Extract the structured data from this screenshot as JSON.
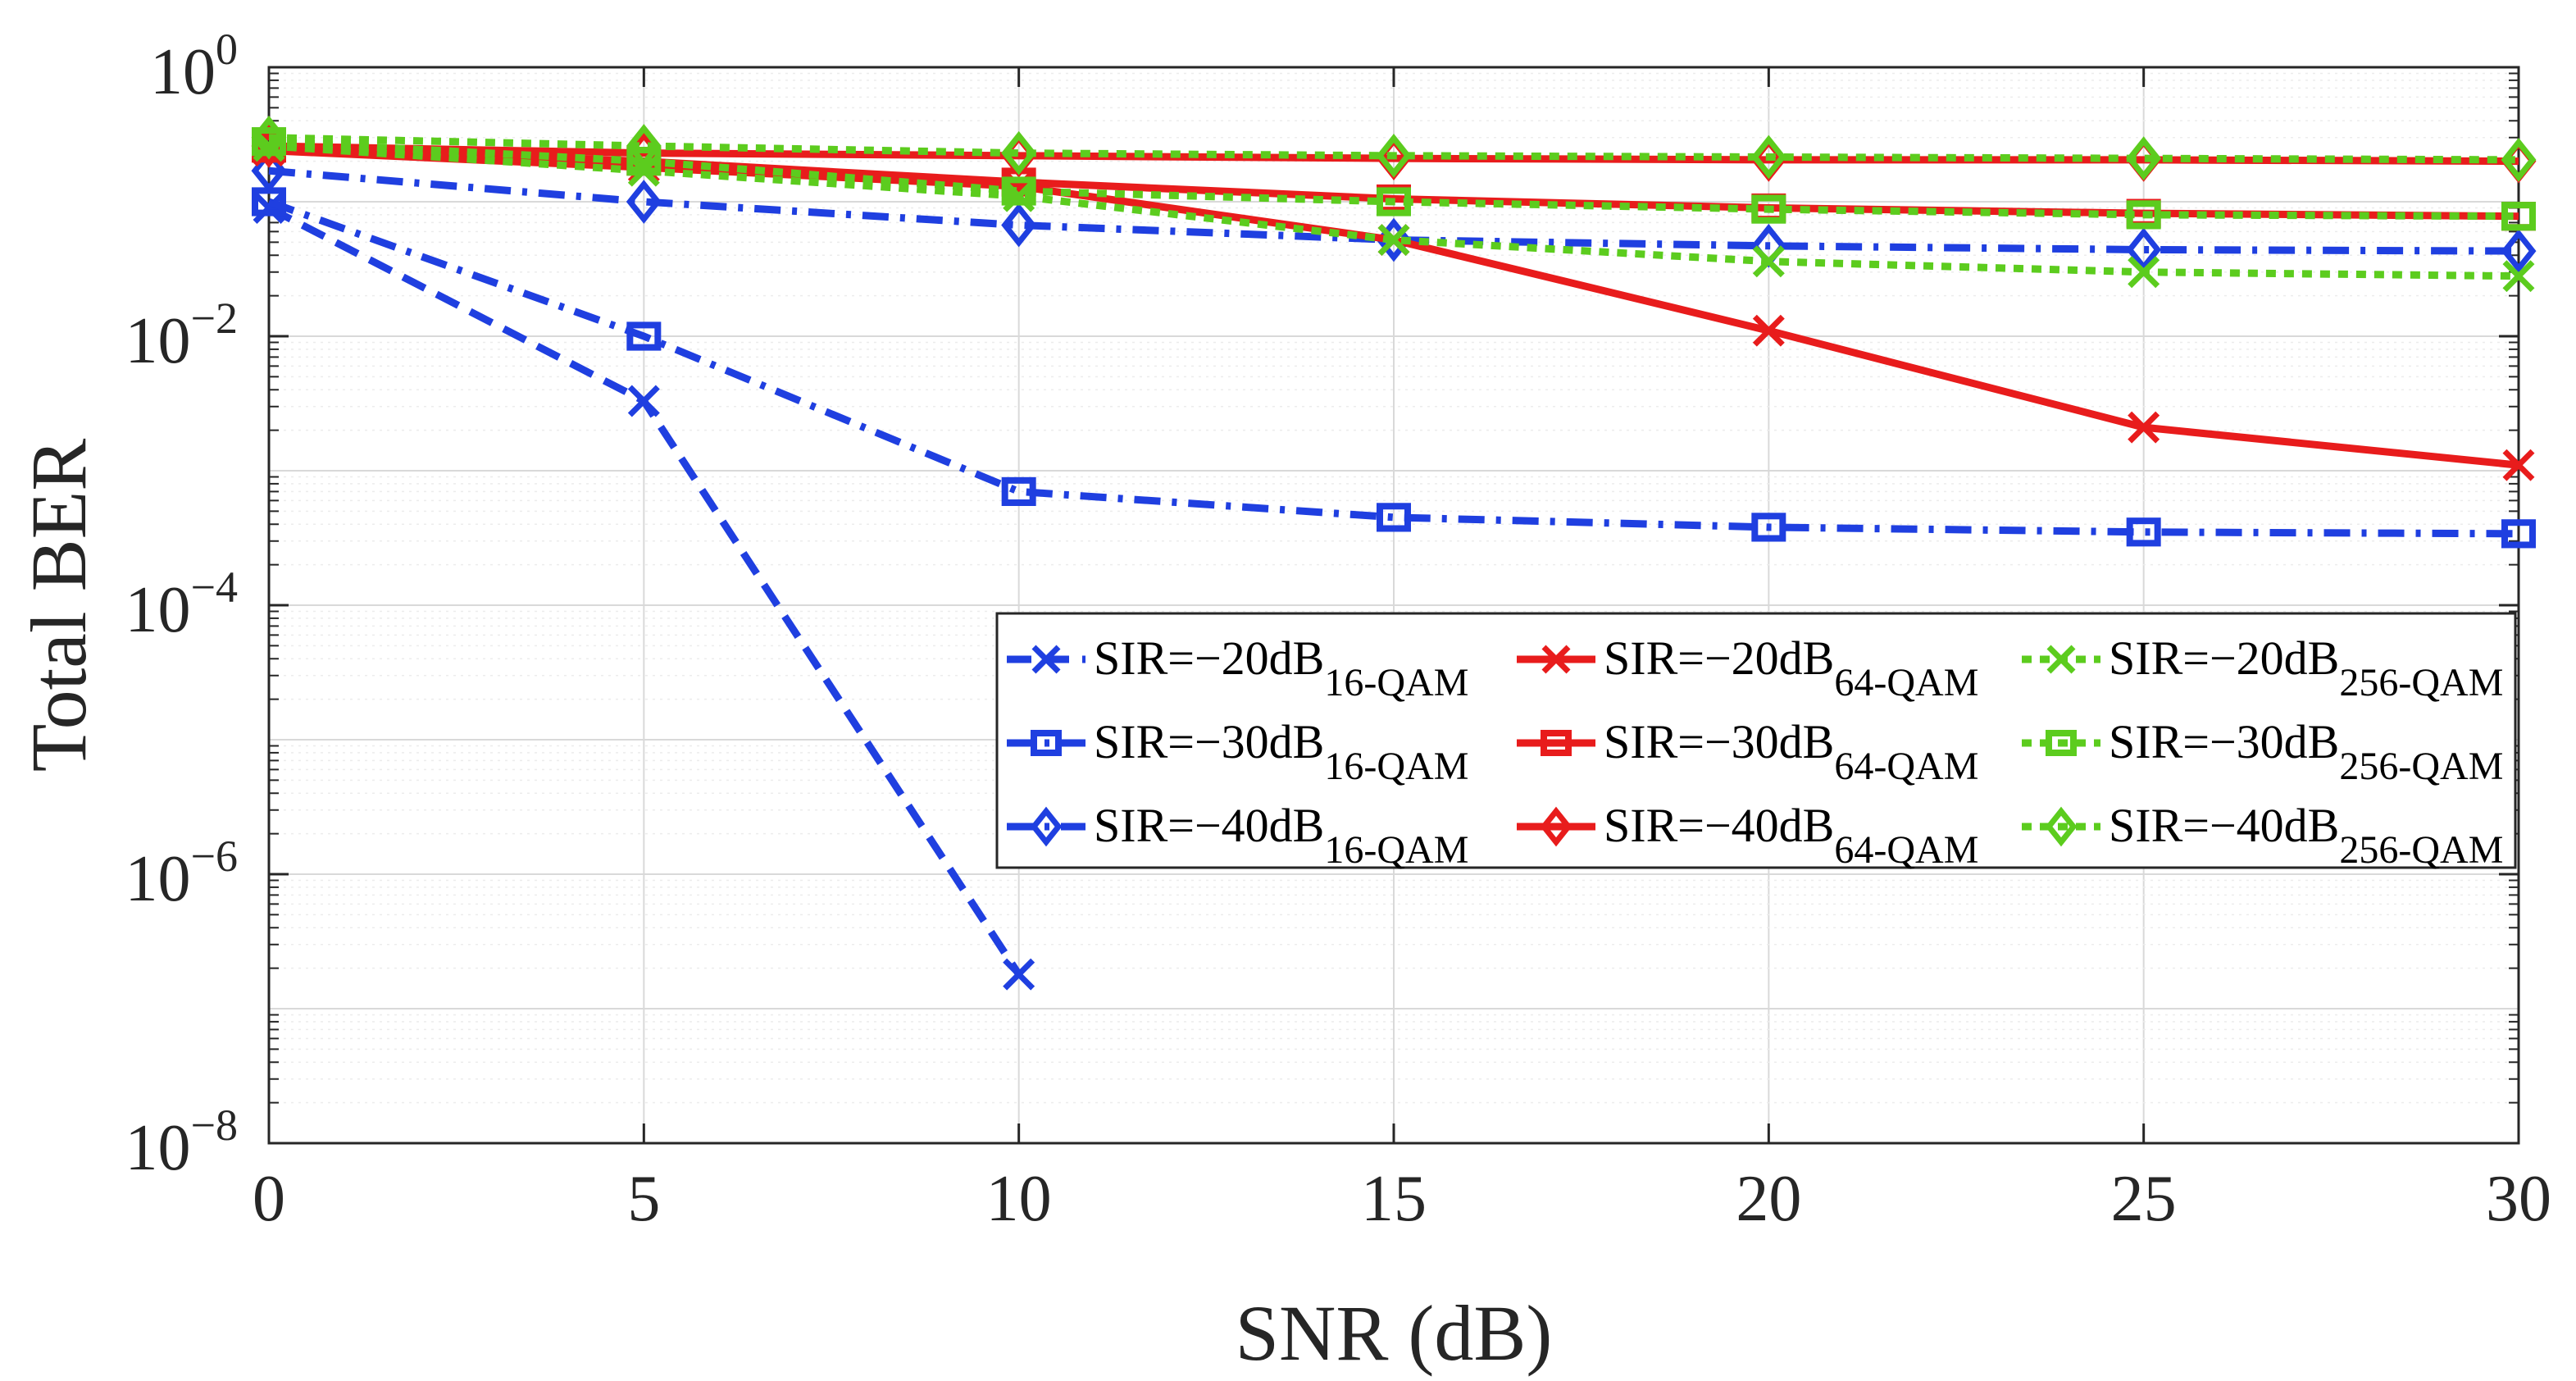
{
  "chart_data": {
    "type": "line",
    "title": "",
    "xlabel": "SNR (dB)",
    "ylabel": "Total BER",
    "yscale": "log",
    "xlim": [
      0,
      30
    ],
    "ylim": [
      1e-08,
      1
    ],
    "grid": true,
    "x_ticks": [
      0,
      5,
      10,
      15,
      20,
      25,
      30
    ],
    "x_tick_labels": [
      "0",
      "5",
      "10",
      "15",
      "20",
      "25",
      "30"
    ],
    "y_ticks": [
      {
        "value": 1,
        "base": "10",
        "exp": "0"
      },
      {
        "value": 0.01,
        "base": "10",
        "exp": "−2"
      },
      {
        "value": 0.0001,
        "base": "10",
        "exp": "−4"
      },
      {
        "value": 1e-06,
        "base": "10",
        "exp": "−6"
      },
      {
        "value": 1e-08,
        "base": "10",
        "exp": "−8"
      }
    ],
    "legend_position": "center-right",
    "x": [
      0,
      5,
      10,
      15,
      20,
      25,
      30
    ],
    "series": [
      {
        "name": "SIR=−20dB",
        "sub": "16-QAM",
        "color": "#1f3fe0",
        "dash": "dash",
        "marker": "x",
        "x": [
          0,
          5,
          10
        ],
        "values": [
          0.09,
          0.0033,
          1.8e-07
        ]
      },
      {
        "name": "SIR=−30dB",
        "sub": "16-QAM",
        "color": "#1f3fe0",
        "dash": "dashdot",
        "marker": "square",
        "x": [
          0,
          5,
          10,
          15,
          20,
          25,
          30
        ],
        "values": [
          0.1,
          0.01,
          0.0007,
          0.00045,
          0.00038,
          0.00035,
          0.00034
        ]
      },
      {
        "name": "SIR=−40dB",
        "sub": "16-QAM",
        "color": "#1f3fe0",
        "dash": "dashdot",
        "marker": "diamond",
        "x": [
          0,
          5,
          10,
          15,
          20,
          25,
          30
        ],
        "values": [
          0.17,
          0.1,
          0.067,
          0.052,
          0.047,
          0.044,
          0.043
        ]
      },
      {
        "name": "SIR=−20dB",
        "sub": "64-QAM",
        "color": "#e81c1c",
        "dash": "solid",
        "marker": "x",
        "x": [
          0,
          5,
          10,
          15,
          20,
          25,
          30
        ],
        "values": [
          0.24,
          0.18,
          0.13,
          0.052,
          0.011,
          0.0021,
          0.0011
        ]
      },
      {
        "name": "SIR=−30dB",
        "sub": "64-QAM",
        "color": "#e81c1c",
        "dash": "solid",
        "marker": "square",
        "x": [
          0,
          5,
          10,
          15,
          20,
          25,
          30
        ],
        "values": [
          0.25,
          0.2,
          0.14,
          0.105,
          0.09,
          0.082,
          0.078
        ]
      },
      {
        "name": "SIR=−40dB",
        "sub": "64-QAM",
        "color": "#e81c1c",
        "dash": "solid",
        "marker": "diamond",
        "x": [
          0,
          5,
          10,
          15,
          20,
          25,
          30
        ],
        "values": [
          0.26,
          0.23,
          0.22,
          0.21,
          0.205,
          0.205,
          0.2
        ]
      },
      {
        "name": "SIR=−20dB",
        "sub": "256-QAM",
        "color": "#5ccc1e",
        "dash": "dot",
        "marker": "x",
        "x": [
          0,
          5,
          10,
          15,
          20,
          25,
          30
        ],
        "values": [
          0.26,
          0.17,
          0.11,
          0.052,
          0.036,
          0.03,
          0.028
        ]
      },
      {
        "name": "SIR=−30dB",
        "sub": "256-QAM",
        "color": "#5ccc1e",
        "dash": "dot",
        "marker": "square",
        "x": [
          0,
          5,
          10,
          15,
          20,
          25,
          30
        ],
        "values": [
          0.28,
          0.2,
          0.12,
          0.1,
          0.088,
          0.08,
          0.078
        ]
      },
      {
        "name": "SIR=−40dB",
        "sub": "256-QAM",
        "color": "#5ccc1e",
        "dash": "dot",
        "marker": "diamond",
        "x": [
          0,
          5,
          10,
          15,
          20,
          25,
          30
        ],
        "values": [
          0.3,
          0.26,
          0.23,
          0.22,
          0.215,
          0.21,
          0.205
        ]
      }
    ]
  }
}
